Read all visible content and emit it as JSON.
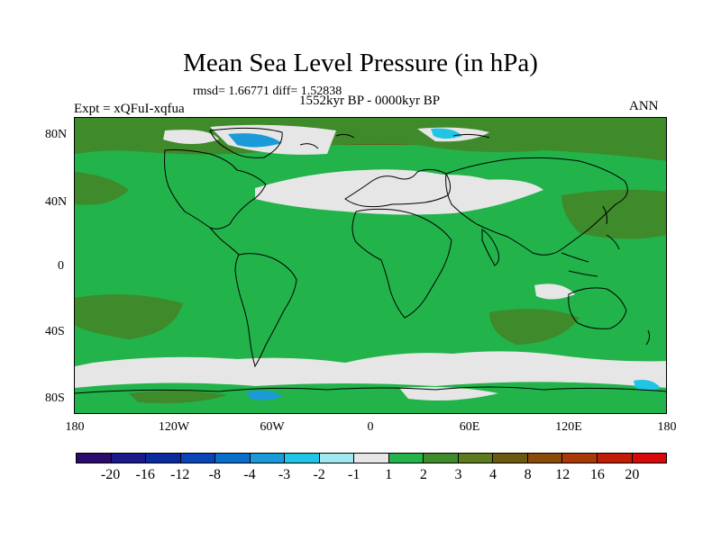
{
  "title": "Mean Sea Level Pressure (in hPa)",
  "stats": "rmsd= 1.66771 diff= 1.52838",
  "left_label": "Expt = xQFuI-xqfua",
  "center_label": "1552kyr BP - 0000kyr BP",
  "right_label": "ANN",
  "lat_ticks": [
    "80N",
    "40N",
    "0",
    "40S",
    "80S"
  ],
  "lon_ticks": [
    "180",
    "120W",
    "60W",
    "0",
    "60E",
    "120E",
    "180"
  ],
  "colorbar": {
    "colors": [
      "#2a0a6b",
      "#1a1a8a",
      "#0a2aa0",
      "#0a44b8",
      "#0a6ecc",
      "#1a9ad8",
      "#20c4e4",
      "#a0e8f0",
      "#e6e6e6",
      "#22b34a",
      "#3f8a2a",
      "#5d7a1e",
      "#6a5a10",
      "#8a4a0a",
      "#a83a08",
      "#c21e05",
      "#d60a0a"
    ],
    "labels": [
      "-20",
      "-16",
      "-12",
      "-8",
      "-4",
      "-3",
      "-2",
      "-1",
      "1",
      "2",
      "3",
      "4",
      "8",
      "12",
      "16",
      "20"
    ]
  },
  "map_colors": {
    "positive_1_2": "#22b34a",
    "positive_2_3": "#3f8a2a",
    "positive_3_4": "#5d7a1e",
    "near_zero": "#e6e6e6",
    "negative_small": "#20c4e4",
    "negative_mid": "#1a9ad8",
    "coastline": "#000000"
  }
}
